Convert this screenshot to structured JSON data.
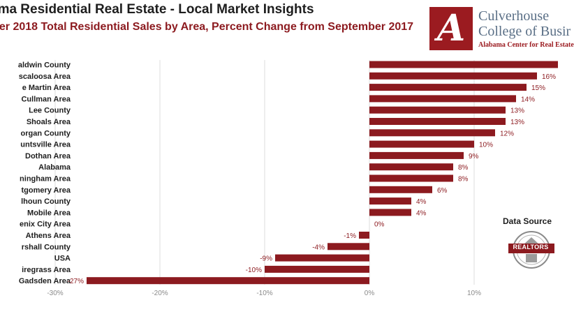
{
  "header": {
    "title": "ama Residential Real Estate - Local Market Insights",
    "subtitle": "ember 2018 Total Residential Sales by Area, Percent Change from September 2017"
  },
  "logo": {
    "letter": "A",
    "line1": "Culverhouse",
    "line2": "College of Busir",
    "line3": "Alabama Center for Real Estate"
  },
  "source": {
    "label": "Data Source",
    "badge_text": "REALTORS"
  },
  "colors": {
    "bar": "#8c1a1f",
    "grid": "#dcdcdc",
    "brand": "#9b1b20"
  },
  "chart_data": {
    "type": "bar",
    "orientation": "horizontal",
    "unit": "%",
    "categories": [
      "aldwin County",
      "scaloosa Area",
      "e Martin Area",
      "Cullman Area",
      "Lee County",
      "Shoals Area",
      "organ County",
      "untsville Area",
      "Dothan Area",
      "Alabama",
      "ningham Area",
      "tgomery Area",
      "lhoun County",
      "Mobile Area",
      "enix City Area",
      "Athens Area",
      "rshall County",
      "USA",
      "iregrass Area",
      "Gadsden Area"
    ],
    "values": [
      18,
      16,
      15,
      14,
      13,
      13,
      12,
      10,
      9,
      8,
      8,
      6,
      4,
      4,
      0,
      -1,
      -4,
      -9,
      -10,
      -27
    ],
    "labels": [
      "",
      "16%",
      "15%",
      "14%",
      "13%",
      "13%",
      "12%",
      "10%",
      "9%",
      "8%",
      "8%",
      "6%",
      "4%",
      "4%",
      "0%",
      "-1%",
      "-4%",
      "-9%",
      "-10%",
      "-27%"
    ],
    "xticks": [
      -30,
      -20,
      -10,
      0,
      10
    ],
    "xtick_labels": [
      "-30%",
      "-20%",
      "-10%",
      "0%",
      "10%"
    ],
    "xlim": [
      -30,
      18
    ],
    "grid": true
  }
}
